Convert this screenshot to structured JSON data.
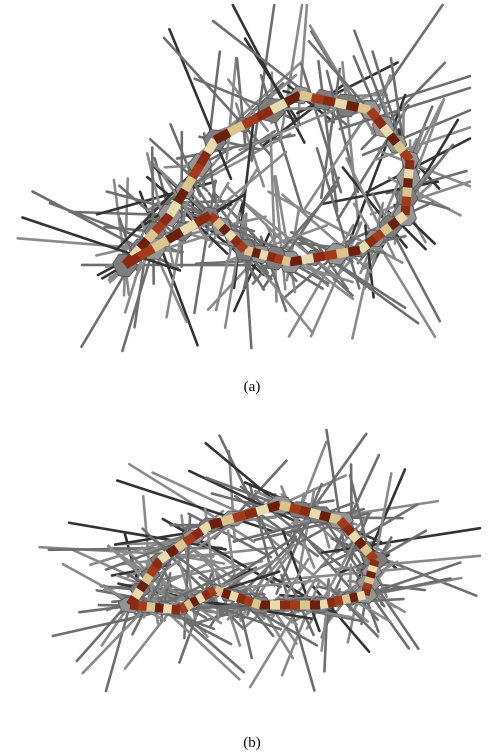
{
  "figures": [
    {
      "caption": "(a)"
    },
    {
      "caption": "(b)"
    }
  ]
}
